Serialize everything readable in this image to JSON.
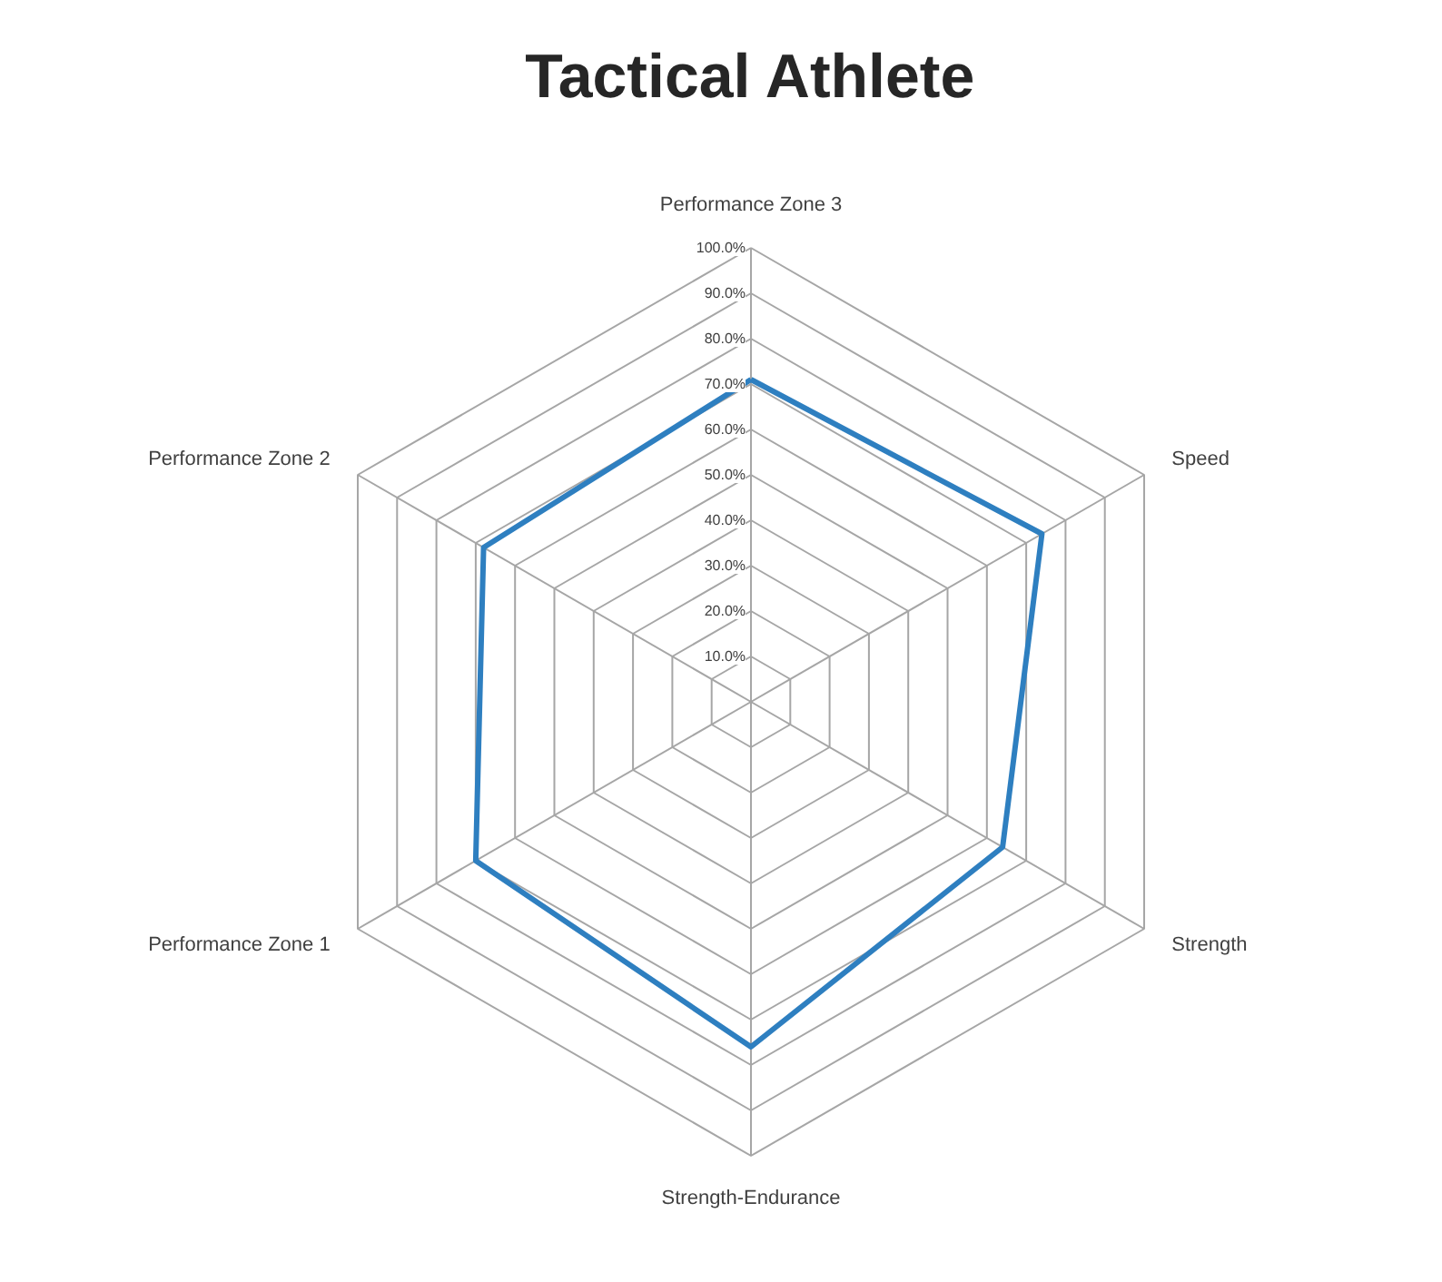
{
  "chart_data": {
    "type": "radar",
    "title": "Tactical Athlete",
    "categories": [
      "Performance Zone 3",
      "Speed",
      "Strength",
      "Strength-Endurance",
      "Performance Zone 1",
      "Performance Zone 2"
    ],
    "series": [
      {
        "color": "#2e7fc0",
        "values": [
          71,
          74,
          64,
          76,
          70,
          68
        ]
      }
    ],
    "ylim": [
      0,
      100
    ],
    "yticks": [
      {
        "value": 10,
        "label": "10.0%"
      },
      {
        "value": 20,
        "label": "20.0%"
      },
      {
        "value": 30,
        "label": "30.0%"
      },
      {
        "value": 40,
        "label": "40.0%"
      },
      {
        "value": 50,
        "label": "50.0%"
      },
      {
        "value": 60,
        "label": "60.0%"
      },
      {
        "value": 70,
        "label": "70.0%"
      },
      {
        "value": 80,
        "label": "80.0%"
      },
      {
        "value": 90,
        "label": "90.0%"
      },
      {
        "value": 100,
        "label": "100.0%"
      }
    ],
    "grid": true,
    "marker": "none",
    "line_style": "solid"
  }
}
